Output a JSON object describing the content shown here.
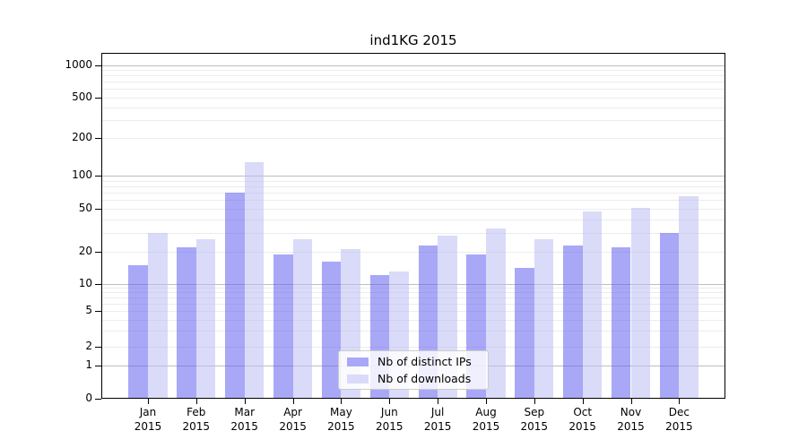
{
  "title": "ind1KG 2015",
  "legend": {
    "items": [
      {
        "label": "Nb of distinct IPs"
      },
      {
        "label": "Nb of downloads"
      }
    ]
  },
  "y_axis": {
    "tick_labels": [
      "0",
      "1",
      "2",
      "5",
      "10",
      "20",
      "50",
      "100",
      "200",
      "500",
      "1000"
    ],
    "tick_values": [
      0,
      1,
      2,
      5,
      10,
      20,
      50,
      100,
      200,
      500,
      1000
    ]
  },
  "x_axis": {
    "months": [
      "Jan",
      "Feb",
      "Mar",
      "Apr",
      "May",
      "Jun",
      "Jul",
      "Aug",
      "Sep",
      "Oct",
      "Nov",
      "Dec"
    ],
    "year": "2015"
  },
  "colors": {
    "bar_distinct_ips": "rgba(97,97,240,0.55)",
    "bar_downloads": "rgba(188,188,244,0.55)",
    "legend_distinct_ips": "#a8a8f7",
    "legend_downloads": "#dadaf9",
    "grid_major": "#bdbdbd",
    "grid_minor": "#ececec"
  },
  "chart_data": {
    "type": "bar",
    "title": "ind1KG 2015",
    "categories": [
      "Jan 2015",
      "Feb 2015",
      "Mar 2015",
      "Apr 2015",
      "May 2015",
      "Jun 2015",
      "Jul 2015",
      "Aug 2015",
      "Sep 2015",
      "Oct 2015",
      "Nov 2015",
      "Dec 2015"
    ],
    "series": [
      {
        "name": "Nb of distinct IPs",
        "values": [
          15,
          22,
          70,
          19,
          16,
          12,
          23,
          19,
          14,
          23,
          22,
          30
        ]
      },
      {
        "name": "Nb of downloads",
        "values": [
          30,
          26,
          128,
          26,
          21,
          13,
          28,
          33,
          26,
          47,
          51,
          65
        ]
      }
    ],
    "xlabel": "",
    "ylabel": "",
    "yscale": "symlog",
    "y_ticks": [
      0,
      1,
      2,
      5,
      10,
      20,
      50,
      100,
      200,
      500,
      1000
    ],
    "ylim": [
      0,
      1500
    ],
    "grid": true,
    "legend_position": "lower center"
  }
}
